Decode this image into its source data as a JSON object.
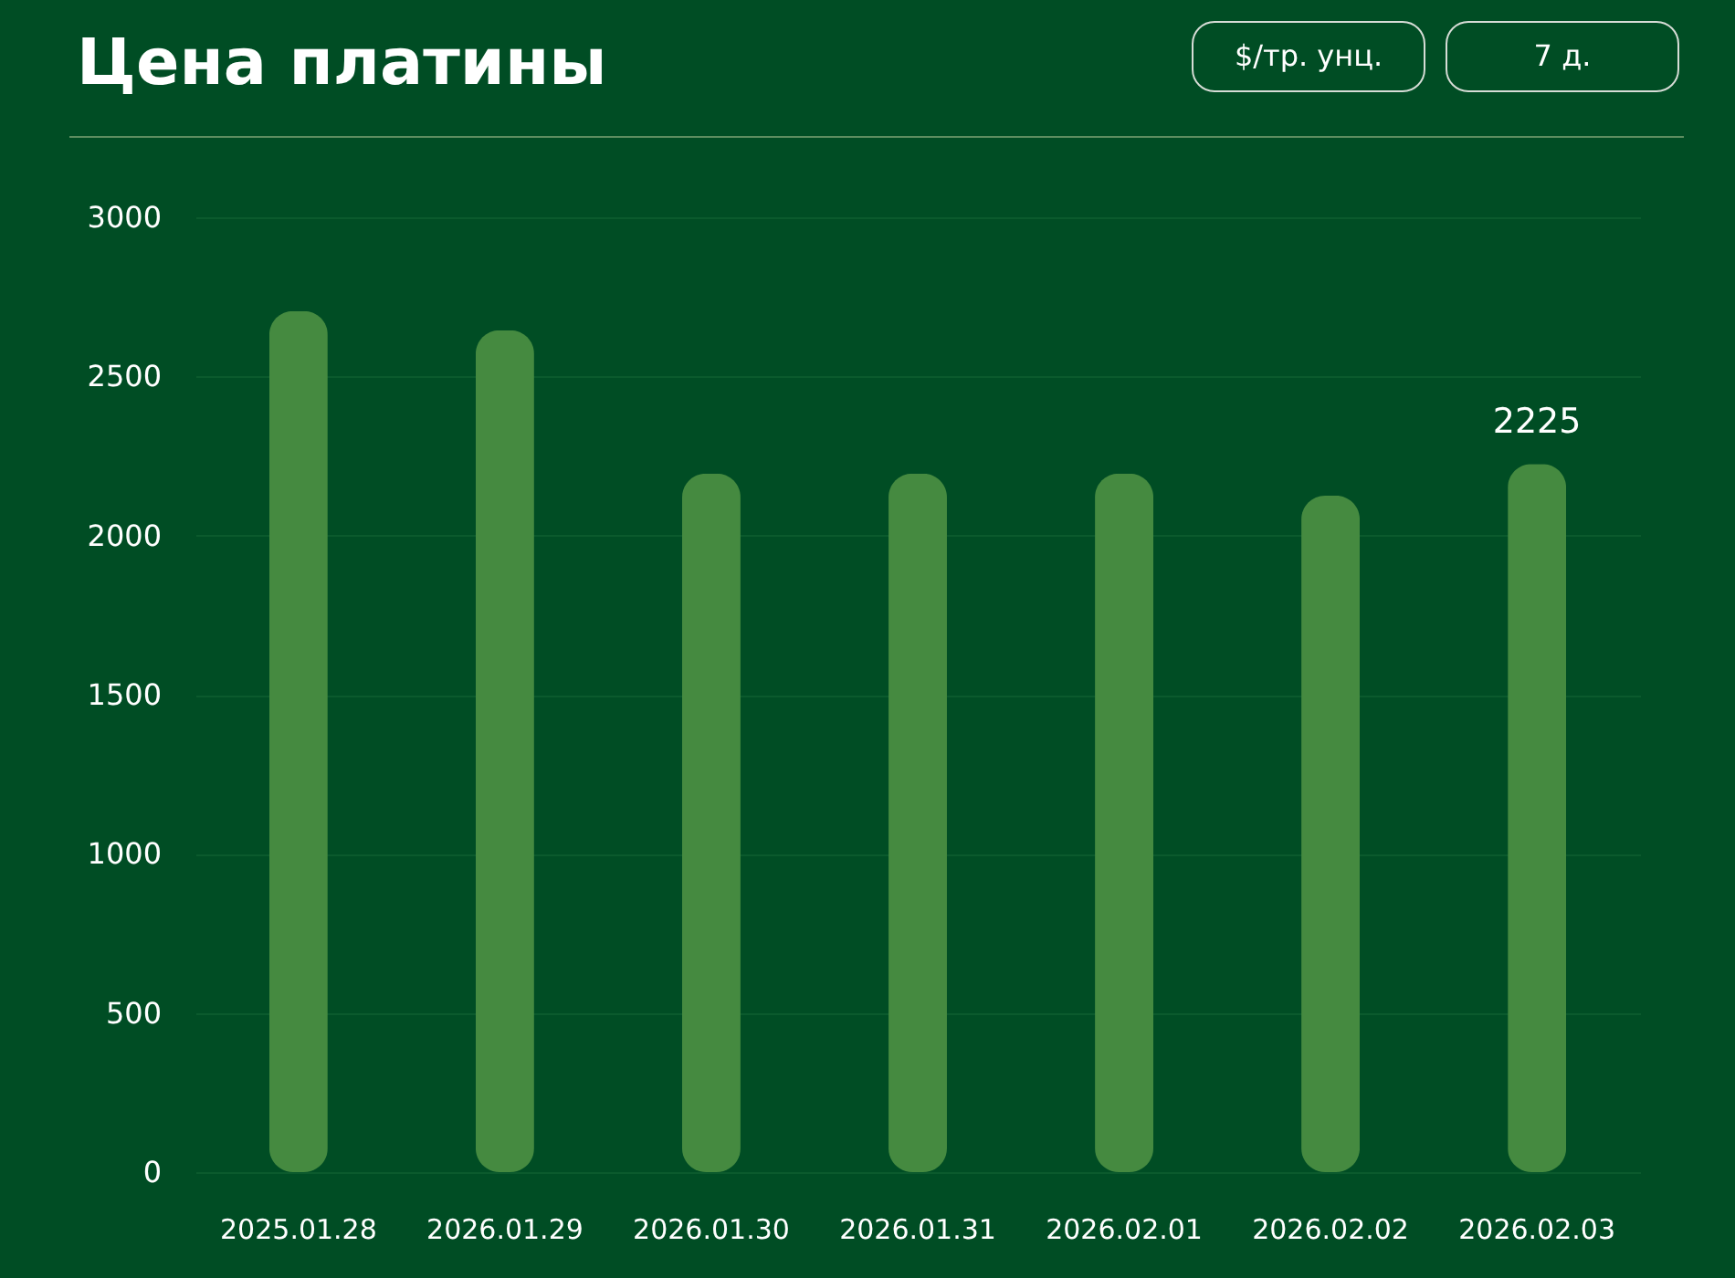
{
  "chart_data": {
    "type": "bar",
    "title": "Цена платины",
    "categories": [
      "2025.01.28",
      "2026.01.29",
      "2026.01.30",
      "2026.01.31",
      "2026.02.01",
      "2026.02.02",
      "2026.02.03"
    ],
    "values": [
      2705,
      2645,
      2195,
      2195,
      2195,
      2125,
      2225
    ],
    "color": "#458a40",
    "ylim": [
      0,
      3000
    ],
    "yticks": [
      0,
      500,
      1000,
      1500,
      2000,
      2500,
      3000
    ],
    "grid": "y",
    "value_labels": [
      null,
      null,
      null,
      null,
      null,
      null,
      "2225"
    ],
    "annotations": [
      "$/тр. унц.",
      "7 д."
    ]
  }
}
